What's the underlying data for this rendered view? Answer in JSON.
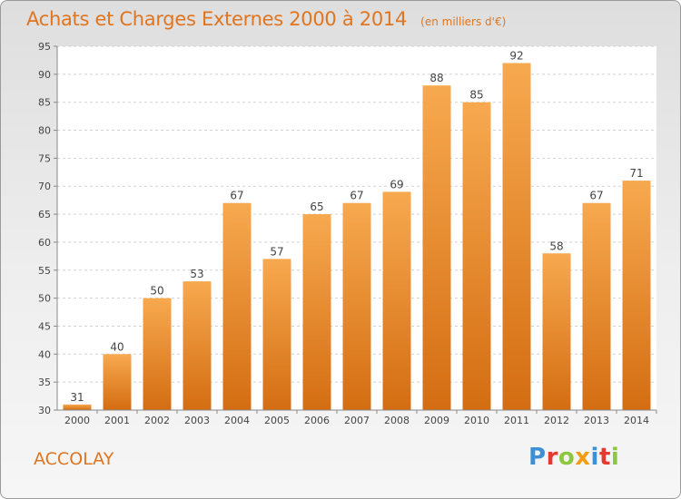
{
  "header": {
    "title": "Achats et Charges Externes 2000 à 2014",
    "subtitle": "(en milliers d'€)"
  },
  "commune": "ACCOLAY",
  "logo": {
    "letters": [
      "P",
      "r",
      "o",
      "x",
      "i",
      "t",
      "i"
    ],
    "colors": [
      "#3d8fd6",
      "#e63a2e",
      "#8dc63f",
      "#f39c12",
      "#3d8fd6",
      "#e63a2e",
      "#8dc63f"
    ]
  },
  "chart_data": {
    "type": "bar",
    "title": "Achats et Charges Externes 2000 à 2014",
    "subtitle": "(en milliers d'€)",
    "categories": [
      "2000",
      "2001",
      "2002",
      "2003",
      "2004",
      "2005",
      "2006",
      "2007",
      "2008",
      "2009",
      "2010",
      "2011",
      "2012",
      "2013",
      "2014"
    ],
    "values": [
      31,
      40,
      50,
      53,
      67,
      57,
      65,
      67,
      69,
      88,
      85,
      92,
      58,
      67,
      71
    ],
    "xlabel": "",
    "ylabel": "",
    "ylim": [
      30,
      95
    ],
    "yticks": [
      30,
      35,
      40,
      45,
      50,
      55,
      60,
      65,
      70,
      75,
      80,
      85,
      90,
      95
    ],
    "grid": true,
    "data_labels": true,
    "bar_color": "#f0902e"
  }
}
